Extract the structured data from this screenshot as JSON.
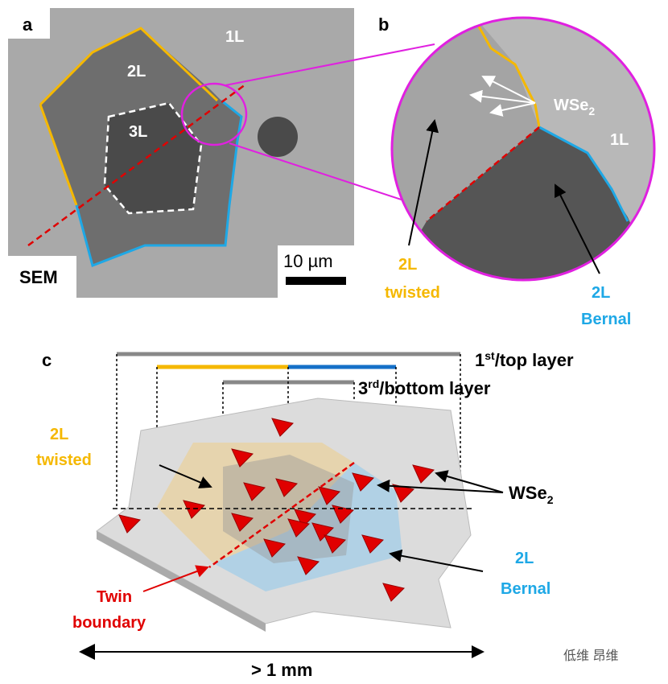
{
  "panel_a": {
    "label": "a",
    "regions": [
      "2L",
      "1L",
      "3L"
    ],
    "method": "SEM",
    "scale_bar": "10 µm"
  },
  "panel_b": {
    "label": "b",
    "wse2": {
      "base": "WSe",
      "sub": "2"
    },
    "region": "1L",
    "twisted": [
      "2L",
      "twisted"
    ],
    "bernal": [
      "2L",
      "Bernal"
    ]
  },
  "panel_c": {
    "label": "c",
    "top_layer": {
      "base": "1",
      "sup": "st",
      "rest": "/top layer"
    },
    "bottom_layer": {
      "base": "3",
      "sup": "rd",
      "rest": "/bottom layer"
    },
    "twisted": [
      "2L",
      "twisted"
    ],
    "wse2": {
      "base": "WSe",
      "sub": "2"
    },
    "bernal": [
      "2L",
      "Bernal"
    ],
    "twin": [
      "Twin",
      "boundary"
    ],
    "size": "> 1 mm"
  },
  "watermark": "低维 昂维"
}
